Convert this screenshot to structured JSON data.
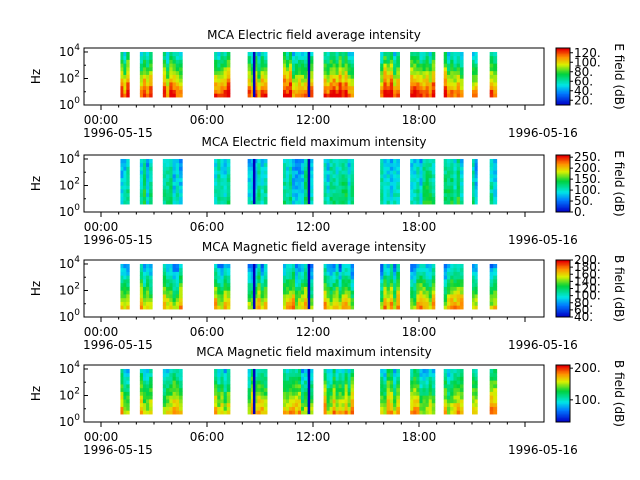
{
  "chart_data": [
    {
      "type": "heatmap",
      "title": "MCA  Electric field average intensity",
      "ylabel": "Hz",
      "y_ticks": [
        {
          "base": "10",
          "exp": "0"
        },
        {
          "base": "10",
          "exp": "2"
        },
        {
          "base": "10",
          "exp": "4"
        }
      ],
      "x_ticks": [
        "00:00",
        "06:00",
        "12:00",
        "18:00",
        ""
      ],
      "x_date_labels": [
        "1996-05-15",
        "1996-05-16"
      ],
      "colorbar_label": "E field (dB)",
      "colorbar_ticks": [
        "20.",
        "40.",
        "60.",
        "80.",
        "100.",
        "120."
      ],
      "colorbar_range": [
        10,
        130
      ],
      "data_intervals_hours": [
        [
          1.1,
          1.6
        ],
        [
          2.2,
          2.9
        ],
        [
          3.5,
          4.6
        ],
        [
          6.4,
          7.3
        ],
        [
          8.3,
          9.4
        ],
        [
          10.3,
          12.0
        ],
        [
          12.6,
          14.3
        ],
        [
          15.8,
          16.9
        ],
        [
          17.5,
          18.9
        ],
        [
          19.4,
          20.5
        ],
        [
          21.0,
          21.3
        ],
        [
          22.0,
          22.4
        ]
      ],
      "ylim_log10": [
        0,
        4.3
      ]
    },
    {
      "type": "heatmap",
      "title": "MCA  Electric field maximum intensity",
      "ylabel": "Hz",
      "y_ticks": [
        {
          "base": "10",
          "exp": "0"
        },
        {
          "base": "10",
          "exp": "2"
        },
        {
          "base": "10",
          "exp": "4"
        }
      ],
      "x_ticks": [
        "00:00",
        "06:00",
        "12:00",
        "18:00",
        ""
      ],
      "x_date_labels": [
        "1996-05-15",
        "1996-05-16"
      ],
      "colorbar_label": "E field (dB)",
      "colorbar_ticks": [
        "0.",
        "50.",
        "100.",
        "150.",
        "200.",
        "250."
      ],
      "colorbar_range": [
        0,
        260
      ],
      "data_intervals_hours": [
        [
          1.1,
          1.6
        ],
        [
          2.2,
          2.9
        ],
        [
          3.5,
          4.6
        ],
        [
          6.4,
          7.3
        ],
        [
          8.3,
          9.4
        ],
        [
          10.3,
          12.0
        ],
        [
          12.6,
          14.3
        ],
        [
          15.8,
          16.9
        ],
        [
          17.5,
          18.9
        ],
        [
          19.4,
          20.5
        ],
        [
          21.0,
          21.3
        ],
        [
          22.0,
          22.4
        ]
      ],
      "ylim_log10": [
        0,
        4.3
      ]
    },
    {
      "type": "heatmap",
      "title": "MCA  Magnetic field average intensity",
      "ylabel": "Hz",
      "y_ticks": [
        {
          "base": "10",
          "exp": "0"
        },
        {
          "base": "10",
          "exp": "2"
        },
        {
          "base": "10",
          "exp": "4"
        }
      ],
      "x_ticks": [
        "00:00",
        "06:00",
        "12:00",
        "18:00",
        ""
      ],
      "x_date_labels": [
        "1996-05-15",
        "1996-05-16"
      ],
      "colorbar_label": "B field (dB)",
      "colorbar_ticks": [
        "40.",
        "60.",
        "80.",
        "100.",
        "120.",
        "140.",
        "160.",
        "180.",
        "200."
      ],
      "colorbar_range": [
        40,
        200
      ],
      "data_intervals_hours": [
        [
          1.1,
          1.6
        ],
        [
          2.2,
          2.9
        ],
        [
          3.5,
          4.6
        ],
        [
          6.4,
          7.3
        ],
        [
          8.3,
          9.4
        ],
        [
          10.3,
          12.0
        ],
        [
          12.6,
          14.3
        ],
        [
          15.8,
          16.9
        ],
        [
          17.5,
          18.9
        ],
        [
          19.4,
          20.5
        ],
        [
          21.0,
          21.3
        ],
        [
          22.0,
          22.4
        ]
      ],
      "ylim_log10": [
        0,
        4.3
      ]
    },
    {
      "type": "heatmap",
      "title": "MCA  Magnetic field maximum intensity",
      "ylabel": "Hz",
      "y_ticks": [
        {
          "base": "10",
          "exp": "0"
        },
        {
          "base": "10",
          "exp": "2"
        },
        {
          "base": "10",
          "exp": "4"
        }
      ],
      "x_ticks": [
        "00:00",
        "06:00",
        "12:00",
        "18:00",
        ""
      ],
      "x_date_labels": [
        "1996-05-15",
        "1996-05-16"
      ],
      "colorbar_label": "B field (dB)",
      "colorbar_ticks": [
        "100.",
        "200."
      ],
      "colorbar_range": [
        30,
        210
      ],
      "data_intervals_hours": [
        [
          1.1,
          1.6
        ],
        [
          2.2,
          2.9
        ],
        [
          3.5,
          4.6
        ],
        [
          6.4,
          7.3
        ],
        [
          8.3,
          9.4
        ],
        [
          10.3,
          12.0
        ],
        [
          12.6,
          14.3
        ],
        [
          15.8,
          16.9
        ],
        [
          17.5,
          18.9
        ],
        [
          19.4,
          20.5
        ],
        [
          21.0,
          21.3
        ],
        [
          22.0,
          22.4
        ]
      ],
      "ylim_log10": [
        0,
        4.3
      ]
    }
  ]
}
